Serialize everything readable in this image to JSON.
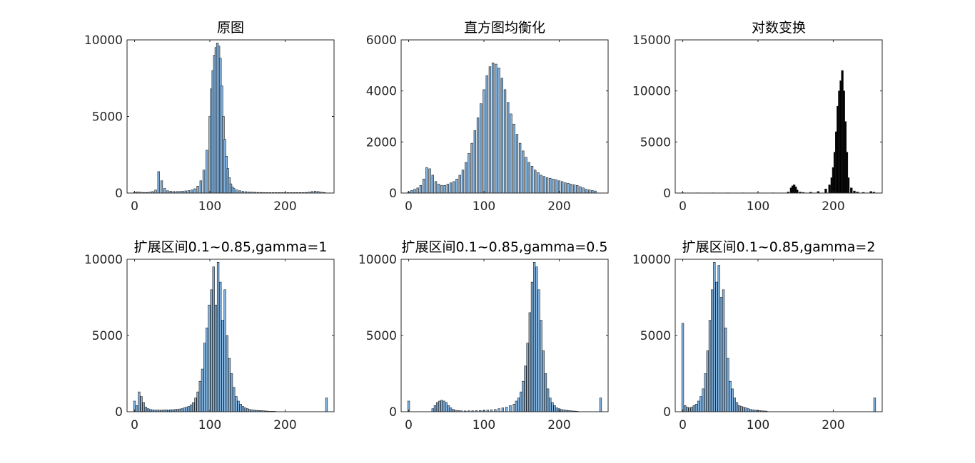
{
  "colors": {
    "bar_fill": "#82b4e1",
    "bar_fill_dark": "#000000",
    "bar_edge": "#1a1a1a",
    "axis": "#262626"
  },
  "chart_data": [
    {
      "type": "bar",
      "title": "原图",
      "xlim": [
        -10,
        265
      ],
      "ylim": [
        0,
        10000
      ],
      "xticks": [
        0,
        100,
        200
      ],
      "yticks": [
        0,
        5000,
        10000
      ],
      "bar_color": "#82b4e1",
      "x": [
        0,
        4,
        8,
        12,
        16,
        20,
        24,
        28,
        32,
        36,
        40,
        44,
        48,
        52,
        56,
        60,
        64,
        68,
        72,
        76,
        80,
        84,
        88,
        92,
        96,
        100,
        102,
        104,
        106,
        108,
        110,
        112,
        114,
        116,
        118,
        120,
        122,
        124,
        126,
        128,
        130,
        132,
        136,
        140,
        144,
        148,
        152,
        156,
        160,
        164,
        168,
        172,
        176,
        180,
        184,
        188,
        192,
        196,
        200,
        204,
        208,
        212,
        216,
        220,
        224,
        228,
        232,
        236,
        240,
        244,
        248,
        252
      ],
      "values": [
        50,
        80,
        60,
        40,
        40,
        60,
        100,
        200,
        1400,
        800,
        300,
        150,
        120,
        100,
        100,
        110,
        120,
        140,
        160,
        200,
        280,
        450,
        800,
        1500,
        2800,
        5000,
        6800,
        8000,
        9000,
        9500,
        9800,
        9600,
        8800,
        7000,
        5000,
        3500,
        2400,
        1600,
        1000,
        600,
        400,
        300,
        200,
        150,
        110,
        90,
        70,
        60,
        50,
        40,
        40,
        30,
        30,
        30,
        30,
        30,
        30,
        30,
        30,
        30,
        30,
        30,
        30,
        30,
        30,
        40,
        60,
        100,
        120,
        100,
        60,
        40
      ]
    },
    {
      "type": "bar",
      "title": "直方图均衡化",
      "xlim": [
        -10,
        265
      ],
      "ylim": [
        0,
        6000
      ],
      "xticks": [
        0,
        100,
        200
      ],
      "yticks": [
        0,
        2000,
        4000,
        6000
      ],
      "bar_color": "#82b4e1",
      "x": [
        0,
        4,
        8,
        12,
        16,
        20,
        24,
        28,
        32,
        36,
        40,
        44,
        48,
        52,
        56,
        60,
        64,
        68,
        72,
        76,
        80,
        84,
        88,
        92,
        96,
        100,
        104,
        108,
        112,
        116,
        120,
        124,
        128,
        132,
        136,
        140,
        144,
        148,
        152,
        156,
        160,
        164,
        168,
        172,
        176,
        180,
        184,
        188,
        192,
        196,
        200,
        204,
        208,
        212,
        216,
        220,
        224,
        228,
        232,
        236,
        240,
        244,
        248
      ],
      "values": [
        50,
        100,
        150,
        200,
        300,
        550,
        1000,
        950,
        700,
        450,
        350,
        300,
        300,
        350,
        400,
        450,
        550,
        700,
        900,
        1200,
        1550,
        1950,
        2450,
        2950,
        3500,
        4050,
        4600,
        4950,
        5100,
        5050,
        4900,
        4500,
        4050,
        3550,
        3100,
        2700,
        2300,
        1950,
        1650,
        1400,
        1200,
        1050,
        900,
        800,
        700,
        650,
        600,
        580,
        550,
        520,
        480,
        450,
        400,
        380,
        350,
        320,
        300,
        250,
        200,
        150,
        120,
        100,
        80
      ]
    },
    {
      "type": "bar",
      "title": "对数变换",
      "xlim": [
        -10,
        265
      ],
      "ylim": [
        0,
        15000
      ],
      "xticks": [
        0,
        100,
        200
      ],
      "yticks": [
        0,
        5000,
        10000,
        15000
      ],
      "bar_color": "#000000",
      "x": [
        0,
        20,
        40,
        60,
        80,
        100,
        120,
        140,
        144,
        146,
        148,
        150,
        152,
        156,
        160,
        170,
        180,
        190,
        195,
        198,
        200,
        202,
        204,
        206,
        208,
        210,
        212,
        214,
        216,
        218,
        220,
        224,
        228,
        232,
        240,
        250,
        254
      ],
      "values": [
        30,
        20,
        20,
        20,
        20,
        20,
        20,
        100,
        500,
        700,
        800,
        600,
        300,
        100,
        60,
        80,
        150,
        400,
        800,
        1500,
        2500,
        4000,
        6000,
        8500,
        10000,
        11000,
        12000,
        10000,
        7000,
        4000,
        1500,
        500,
        200,
        100,
        60,
        150,
        80
      ]
    },
    {
      "type": "bar",
      "title": "扩展区间0.1~0.85,gamma=1",
      "xlim": [
        -10,
        265
      ],
      "ylim": [
        0,
        10000
      ],
      "xticks": [
        0,
        100,
        200
      ],
      "yticks": [
        0,
        5000,
        10000
      ],
      "bar_color": "#82b4e1",
      "x": [
        0,
        3,
        6,
        9,
        12,
        15,
        18,
        21,
        24,
        27,
        30,
        33,
        36,
        39,
        42,
        45,
        48,
        51,
        54,
        57,
        60,
        63,
        66,
        69,
        72,
        75,
        78,
        81,
        84,
        87,
        90,
        93,
        96,
        99,
        102,
        105,
        108,
        111,
        114,
        117,
        120,
        123,
        126,
        129,
        132,
        135,
        138,
        141,
        144,
        147,
        150,
        153,
        156,
        159,
        162,
        165,
        168,
        171,
        174,
        177,
        180,
        183,
        186,
        255
      ],
      "values": [
        700,
        400,
        1300,
        1000,
        600,
        300,
        200,
        150,
        120,
        100,
        110,
        100,
        100,
        110,
        120,
        100,
        130,
        120,
        150,
        160,
        180,
        200,
        250,
        300,
        350,
        450,
        600,
        900,
        1300,
        2000,
        2800,
        4500,
        5500,
        7000,
        8000,
        9500,
        7000,
        9800,
        8500,
        6000,
        8000,
        5000,
        3500,
        2500,
        1600,
        1000,
        700,
        500,
        350,
        250,
        200,
        150,
        120,
        100,
        90,
        80,
        70,
        60,
        50,
        40,
        30,
        30,
        30,
        900
      ]
    },
    {
      "type": "bar",
      "title": "扩展区间0.1~0.85,gamma=0.5",
      "xlim": [
        -10,
        265
      ],
      "ylim": [
        0,
        10000
      ],
      "xticks": [
        0,
        100,
        200
      ],
      "yticks": [
        0,
        5000,
        10000
      ],
      "bar_color": "#82b4e1",
      "x": [
        0,
        32,
        35,
        38,
        41,
        44,
        47,
        50,
        53,
        56,
        59,
        62,
        66,
        70,
        75,
        80,
        85,
        90,
        95,
        100,
        105,
        110,
        115,
        120,
        125,
        130,
        135,
        140,
        143,
        146,
        149,
        152,
        155,
        158,
        161,
        164,
        167,
        170,
        173,
        176,
        179,
        182,
        185,
        188,
        191,
        194,
        197,
        200,
        203,
        206,
        209,
        212,
        215,
        218,
        221,
        224,
        255
      ],
      "values": [
        700,
        200,
        400,
        600,
        700,
        750,
        700,
        600,
        400,
        250,
        150,
        100,
        80,
        60,
        50,
        60,
        60,
        70,
        80,
        90,
        100,
        120,
        150,
        200,
        250,
        300,
        400,
        500,
        700,
        900,
        1300,
        2000,
        3000,
        4500,
        6500,
        8500,
        9800,
        9500,
        8000,
        6000,
        4000,
        2500,
        1500,
        900,
        600,
        400,
        250,
        200,
        150,
        120,
        100,
        80,
        60,
        50,
        40,
        30,
        900
      ]
    },
    {
      "type": "bar",
      "title": "扩展区间0.1~0.85,gamma=2",
      "xlim": [
        -10,
        265
      ],
      "ylim": [
        0,
        10000
      ],
      "xticks": [
        0,
        100,
        200
      ],
      "yticks": [
        0,
        5000,
        10000
      ],
      "bar_color": "#82b4e1",
      "x": [
        0,
        3,
        6,
        9,
        12,
        15,
        18,
        21,
        24,
        27,
        30,
        33,
        36,
        39,
        42,
        45,
        48,
        51,
        54,
        57,
        60,
        63,
        66,
        69,
        72,
        75,
        78,
        81,
        84,
        87,
        90,
        93,
        96,
        99,
        102,
        105,
        108,
        111,
        255
      ],
      "values": [
        5800,
        400,
        300,
        250,
        300,
        400,
        500,
        700,
        1000,
        1500,
        2500,
        4000,
        6000,
        8000,
        9800,
        8500,
        9600,
        7500,
        8000,
        5500,
        3500,
        2000,
        1500,
        900,
        600,
        400,
        350,
        300,
        250,
        200,
        150,
        120,
        100,
        80,
        70,
        60,
        50,
        40,
        900
      ]
    }
  ]
}
